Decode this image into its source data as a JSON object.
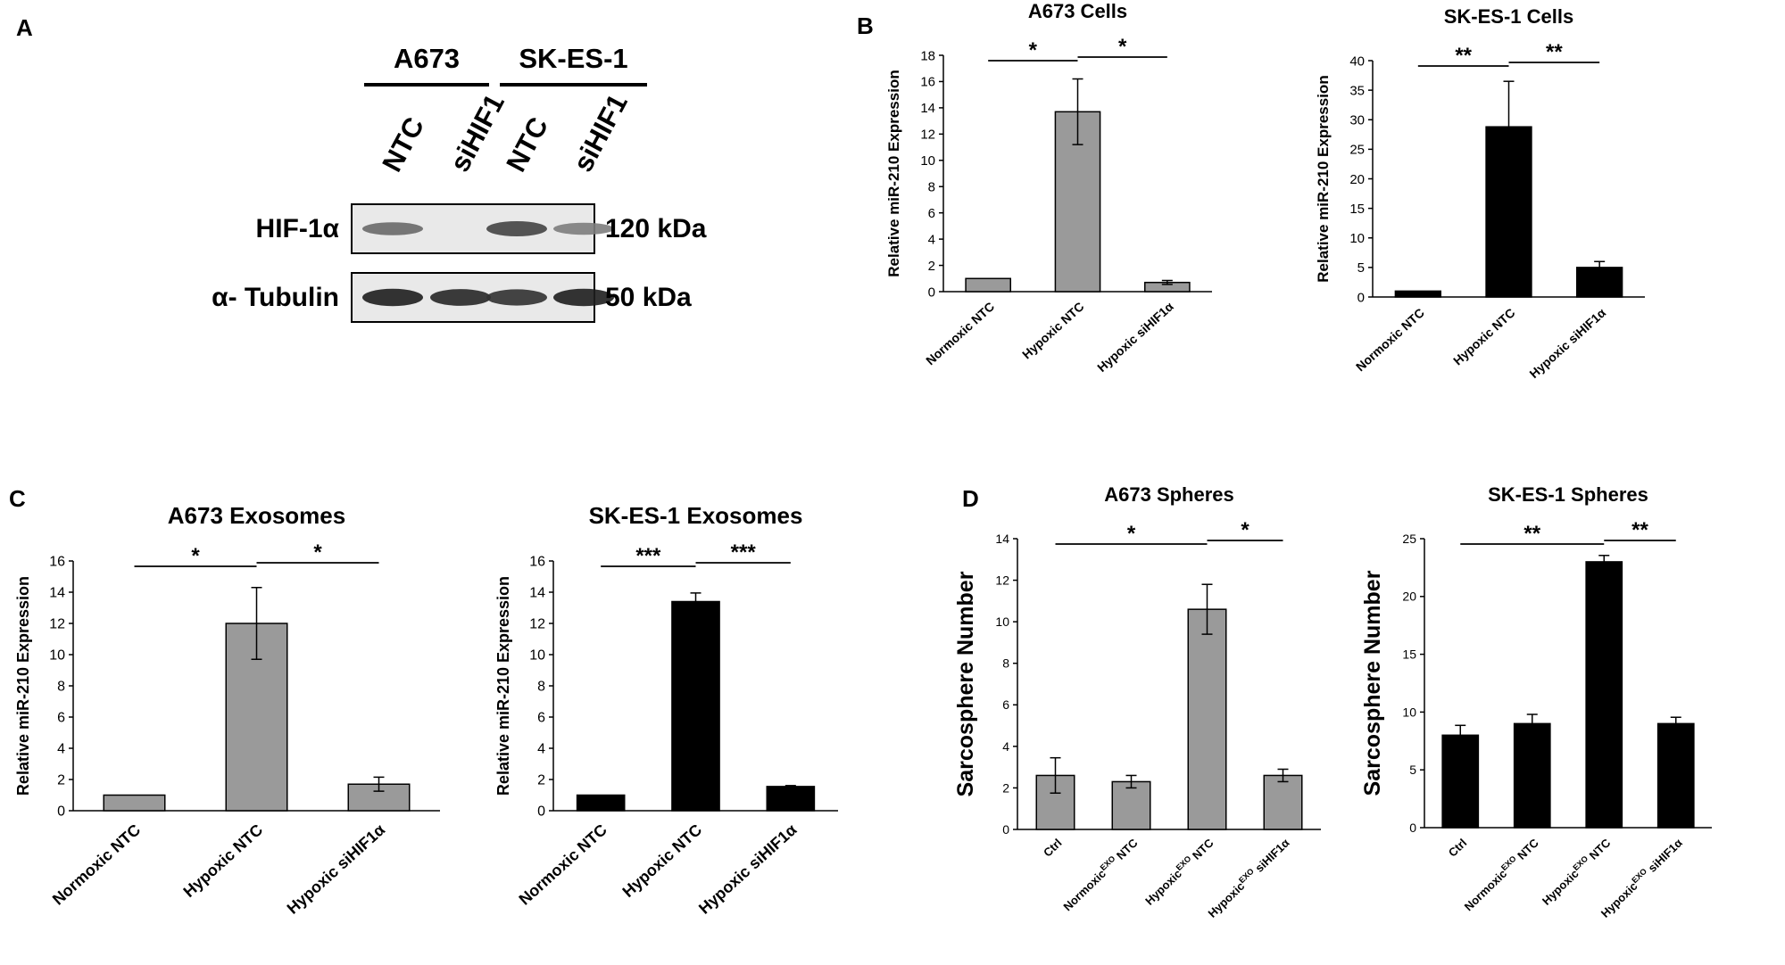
{
  "panels": {
    "A": "A",
    "B": "B",
    "C": "C",
    "D": "D"
  },
  "western_blot": {
    "cell_lines": [
      "A673",
      "SK-ES-1"
    ],
    "lanes": [
      "NTC",
      "siHIF1",
      "NTC",
      "siHIF1"
    ],
    "rows": [
      {
        "protein": "HIF-1α",
        "size": "120 kDa",
        "band_intensity": [
          0.55,
          0.0,
          0.75,
          0.45
        ]
      },
      {
        "protein": "α- Tubulin",
        "size": "50 kDa",
        "band_intensity": [
          0.95,
          0.9,
          0.85,
          0.95
        ]
      }
    ]
  },
  "chart_data": [
    {
      "id": "B1",
      "type": "bar",
      "title": "A673 Cells",
      "ylabel": "Relative miR-210 Expression",
      "xlabel": "",
      "categories": [
        "Normoxic NTC",
        "Hypoxic NTC",
        "Hypoxic siHIF1α"
      ],
      "values": [
        1.0,
        13.7,
        0.7
      ],
      "errors": [
        0,
        2.5,
        0.15
      ],
      "ylim": [
        0,
        18
      ],
      "yticks": [
        0,
        2,
        4,
        6,
        8,
        10,
        12,
        14,
        16,
        18
      ],
      "colors": [
        "#9a9a9a",
        "#9a9a9a",
        "#9a9a9a"
      ],
      "significance": [
        {
          "from": 0,
          "to": 1,
          "label": "*"
        },
        {
          "from": 1,
          "to": 2,
          "label": "*"
        }
      ]
    },
    {
      "id": "B2",
      "type": "bar",
      "title": "SK-ES-1 Cells",
      "ylabel": "Relative miR-210 Expression",
      "xlabel": "",
      "categories": [
        "Normoxic NTC",
        "Hypoxic NTC",
        "Hypoxic siHIF1α"
      ],
      "values": [
        1.0,
        28.8,
        5.0
      ],
      "errors": [
        0,
        7.7,
        1.0
      ],
      "ylim": [
        0,
        40
      ],
      "yticks": [
        0,
        5,
        10,
        15,
        20,
        25,
        30,
        35,
        40
      ],
      "colors": [
        "#000000",
        "#000000",
        "#000000"
      ],
      "significance": [
        {
          "from": 0,
          "to": 1,
          "label": "**"
        },
        {
          "from": 1,
          "to": 2,
          "label": "**"
        }
      ]
    },
    {
      "id": "C1",
      "type": "bar",
      "title": "A673 Exosomes",
      "ylabel": "Relative miR-210 Expression",
      "xlabel": "",
      "categories": [
        "Normoxic NTC",
        "Hypoxic NTC",
        "Hypoxic siHIF1α"
      ],
      "values": [
        1.0,
        12.0,
        1.7
      ],
      "errors": [
        0,
        2.3,
        0.45
      ],
      "ylim": [
        0,
        16
      ],
      "yticks": [
        0,
        2,
        4,
        6,
        8,
        10,
        12,
        14,
        16
      ],
      "colors": [
        "#9a9a9a",
        "#9a9a9a",
        "#9a9a9a"
      ],
      "significance": [
        {
          "from": 0,
          "to": 1,
          "label": "*"
        },
        {
          "from": 1,
          "to": 2,
          "label": "*"
        }
      ]
    },
    {
      "id": "C2",
      "type": "bar",
      "title": "SK-ES-1 Exosomes",
      "ylabel": "Relative miR-210 Expression",
      "xlabel": "",
      "categories": [
        "Normoxic NTC",
        "Hypoxic NTC",
        "Hypoxic siHIF1α"
      ],
      "values": [
        1.0,
        13.4,
        1.55
      ],
      "errors": [
        0,
        0.55,
        0.06
      ],
      "ylim": [
        0,
        16
      ],
      "yticks": [
        0,
        2,
        4,
        6,
        8,
        10,
        12,
        14,
        16
      ],
      "colors": [
        "#000000",
        "#000000",
        "#000000"
      ],
      "significance": [
        {
          "from": 0,
          "to": 1,
          "label": "***"
        },
        {
          "from": 1,
          "to": 2,
          "label": "***"
        }
      ]
    },
    {
      "id": "D1",
      "type": "bar",
      "title": "A673 Spheres",
      "ylabel": "Sarcosphere Number",
      "xlabel": "",
      "categories": [
        "Ctrl",
        "Normoxic|EXO| NTC",
        "Hypoxic|EXO| NTC",
        "Hypoxic|EXO| siHIF1α"
      ],
      "values": [
        2.6,
        2.3,
        10.6,
        2.6
      ],
      "errors": [
        0.85,
        0.3,
        1.2,
        0.3
      ],
      "ylim": [
        0,
        14
      ],
      "yticks": [
        0,
        2,
        4,
        6,
        8,
        10,
        12,
        14
      ],
      "colors": [
        "#9a9a9a",
        "#9a9a9a",
        "#9a9a9a",
        "#9a9a9a"
      ],
      "significance": [
        {
          "from": 0,
          "to": 2,
          "label": "*"
        },
        {
          "from": 2,
          "to": 3,
          "label": "*"
        }
      ]
    },
    {
      "id": "D2",
      "type": "bar",
      "title": "SK-ES-1 Spheres",
      "ylabel": "Sarcosphere Number",
      "xlabel": "",
      "categories": [
        "Ctrl",
        "Normoxic|EXO| NTC",
        "Hypoxic|EXO| NTC",
        "Hypoxic|EXO| siHIF1α"
      ],
      "values": [
        8.0,
        9.0,
        23.0,
        9.0
      ],
      "errors": [
        0.85,
        0.8,
        0.55,
        0.55
      ],
      "ylim": [
        0,
        25
      ],
      "yticks": [
        0,
        5,
        10,
        15,
        20,
        25
      ],
      "colors": [
        "#000000",
        "#000000",
        "#000000",
        "#000000"
      ],
      "significance": [
        {
          "from": 0,
          "to": 2,
          "label": "**"
        },
        {
          "from": 2,
          "to": 3,
          "label": "**"
        }
      ]
    }
  ]
}
